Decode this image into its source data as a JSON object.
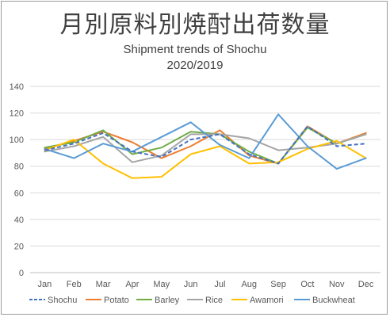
{
  "title": "月別原料別焼酎出荷数量",
  "subtitle_line1": "Shipment trends of Shochu",
  "subtitle_line2": "2020/2019",
  "chart_data": {
    "type": "line",
    "title": "月別原料別焼酎出荷数量",
    "subtitle": "Shipment trends of Shochu 2020/2019",
    "xlabel": "",
    "ylabel": "",
    "ylim": [
      0,
      140
    ],
    "yticks": [
      0,
      20,
      40,
      60,
      80,
      100,
      120,
      140
    ],
    "grid": true,
    "legend_position": "bottom",
    "categories": [
      "Jan",
      "Feb",
      "Mar",
      "Apr",
      "May",
      "Jun",
      "Jul",
      "Aug",
      "Sep",
      "Oct",
      "Nov",
      "Dec"
    ],
    "series": [
      {
        "name": "Shochu",
        "color": "#4472c4",
        "dashed": true,
        "values": [
          92,
          97,
          105,
          91,
          87,
          100,
          104,
          89,
          82,
          110,
          95,
          97
        ]
      },
      {
        "name": "Potato",
        "color": "#ed7d31",
        "dashed": false,
        "values": [
          93,
          99,
          106,
          98,
          86,
          95,
          107,
          88,
          82,
          110,
          97,
          105
        ]
      },
      {
        "name": "Barley",
        "color": "#70ad47",
        "dashed": false,
        "values": [
          94,
          98,
          107,
          89,
          94,
          106,
          104,
          91,
          82,
          109,
          97,
          104
        ]
      },
      {
        "name": "Rice",
        "color": "#a5a5a5",
        "dashed": false,
        "values": [
          91,
          95,
          102,
          83,
          88,
          104,
          104,
          101,
          92,
          94,
          97,
          104
        ]
      },
      {
        "name": "Awamori",
        "color": "#ffc000",
        "dashed": false,
        "values": [
          92,
          100,
          82,
          71,
          72,
          89,
          95,
          82,
          83,
          93,
          99,
          86
        ]
      },
      {
        "name": "Buckwheat",
        "color": "#5b9bd5",
        "dashed": false,
        "values": [
          93,
          86,
          97,
          91,
          102,
          113,
          96,
          86,
          119,
          95,
          78,
          86
        ]
      }
    ]
  }
}
